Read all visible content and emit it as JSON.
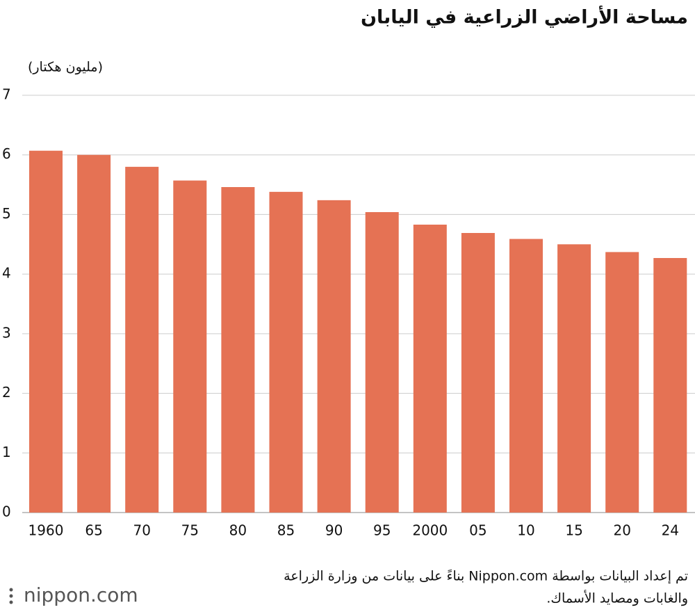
{
  "chart_data": {
    "type": "bar",
    "title": "مساحة الأراضي الزراعية في اليابان",
    "y_axis_label": "(مليون هكتار)",
    "categories": [
      "1960",
      "65",
      "70",
      "75",
      "80",
      "85",
      "90",
      "95",
      "2000",
      "05",
      "10",
      "15",
      "20",
      "24"
    ],
    "values": [
      6.07,
      6.0,
      5.8,
      5.57,
      5.46,
      5.38,
      5.24,
      5.04,
      4.83,
      4.69,
      4.59,
      4.5,
      4.37,
      4.27
    ],
    "color": "#e57254",
    "ylim": [
      0,
      7
    ],
    "yticks": [
      0,
      1,
      2,
      3,
      4,
      5,
      6,
      7
    ],
    "grid": true,
    "source_lines": [
      "تم إعداد البيانات بواسطة Nippon.com بناءً على بيانات من وزارة الزراعة",
      "والغابات ومصايد الأسماك."
    ],
    "logo": "nippon.com"
  }
}
